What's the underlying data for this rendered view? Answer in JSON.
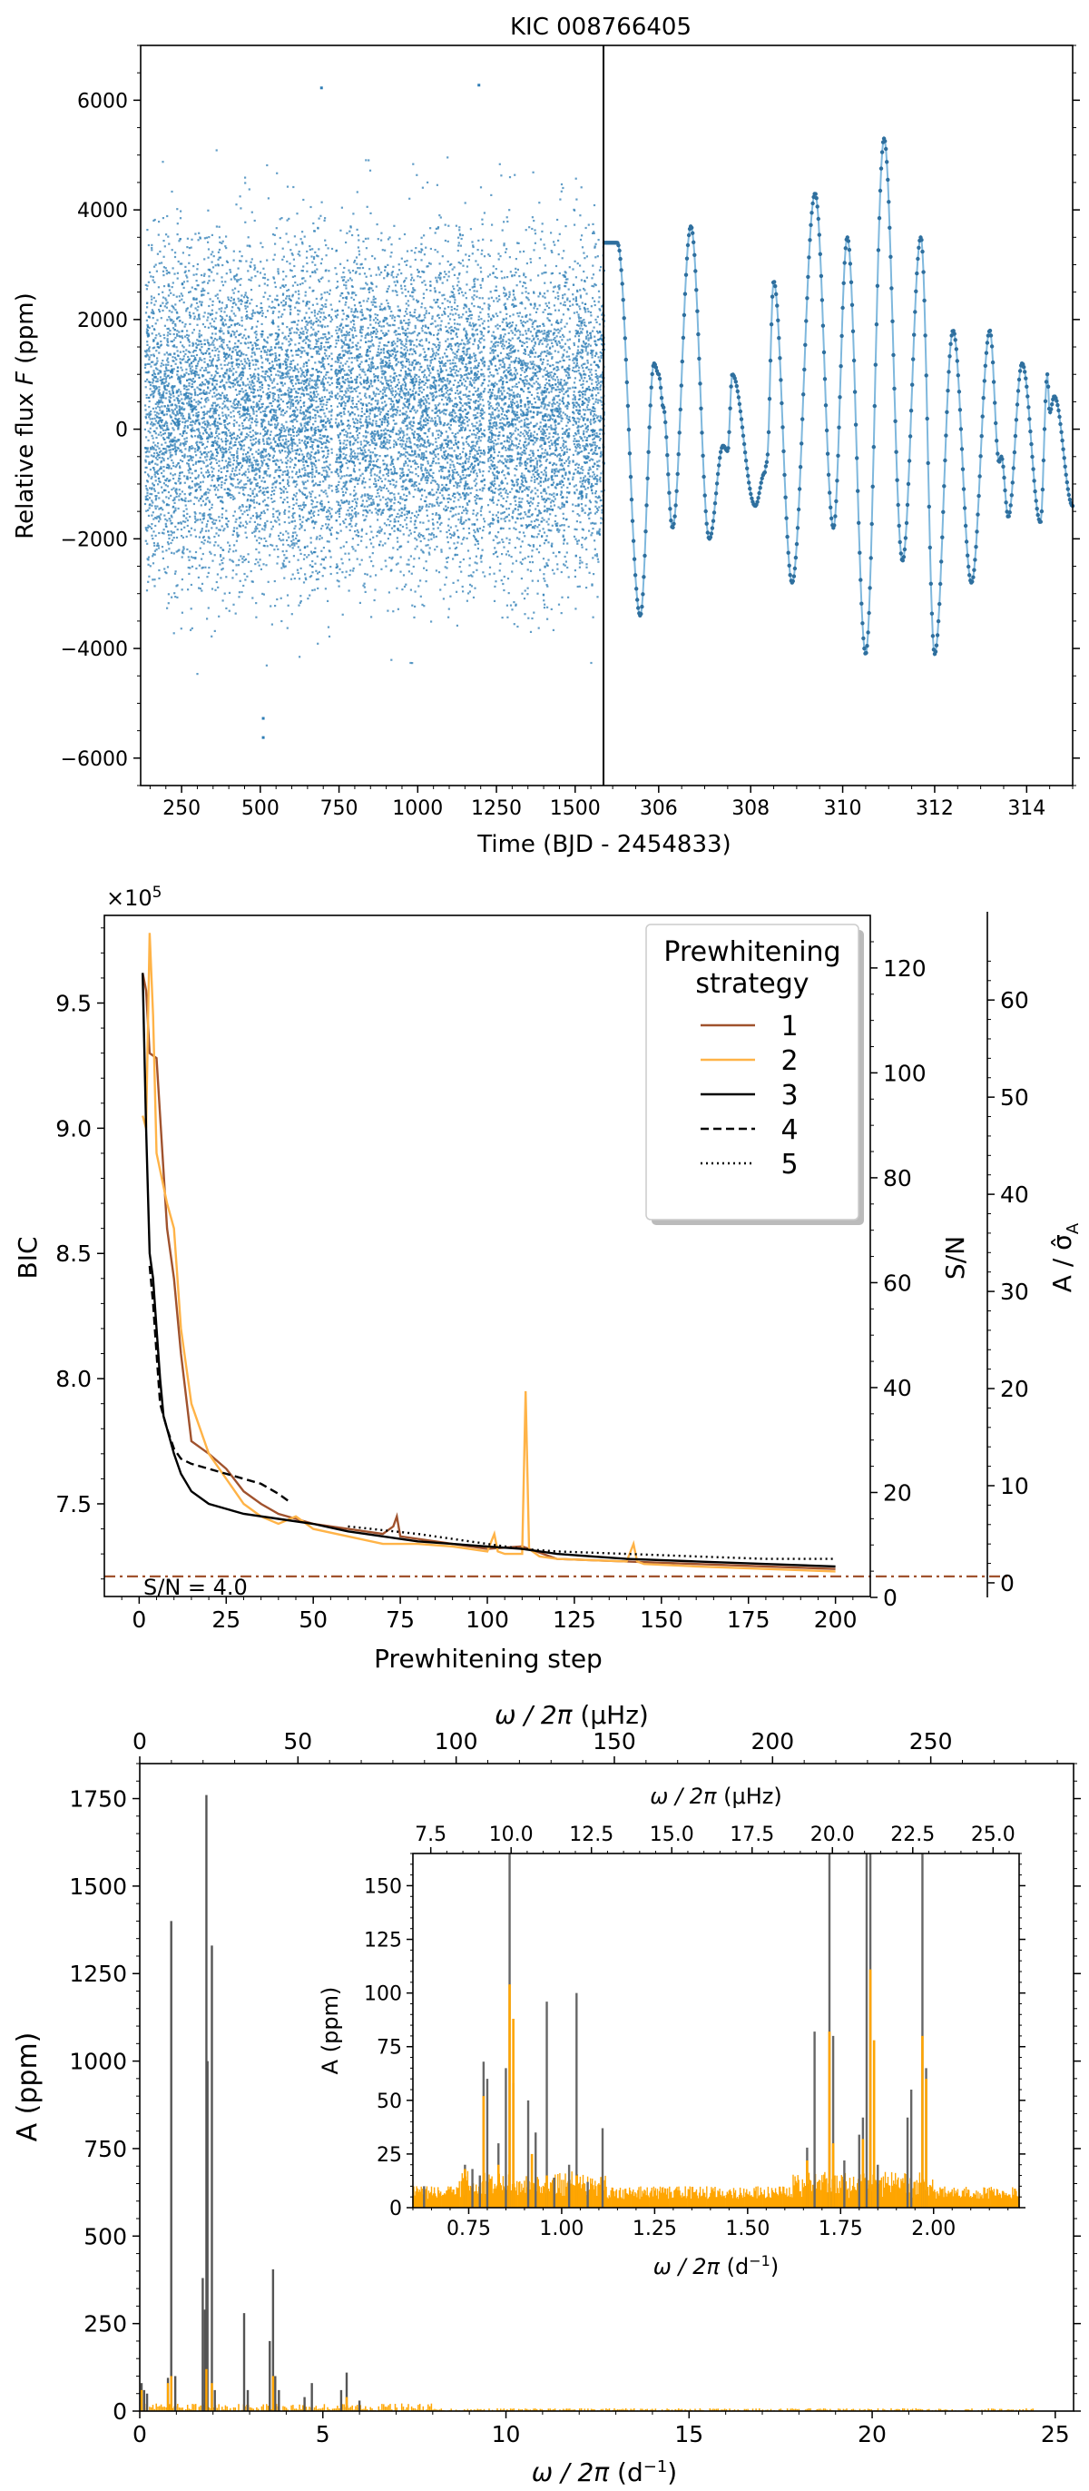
{
  "chart_data": [
    {
      "id": "lightcurve",
      "type": "scatter",
      "title": "KIC 008766405",
      "ylabel": "Relative flux",
      "ylabel_symbol": "F",
      "ylabel_unit": "(ppm)",
      "xlabel": "Time (BJD - 2454833)",
      "left_panel": {
        "xlim": [
          120,
          1590
        ],
        "ylim": [
          -6500,
          7000
        ],
        "xticks": [
          "250",
          "500",
          "750",
          "1000",
          "1250",
          "1500"
        ],
        "yticks": [
          "6000",
          "4000",
          "2000",
          "0",
          "−2000",
          "−4000",
          "−6000"
        ],
        "bands": [
          {
            "x": [
              131,
              1590
            ],
            "y": [
              -3800,
              4400
            ]
          },
          {
            "x": [
              131,
              1590
            ],
            "y": [
              -4700,
              5400
            ]
          },
          {
            "x": [
              160,
              1560
            ],
            "y": [
              -4900,
              6100
            ]
          }
        ],
        "outliers": [
          {
            "x": 505,
            "y": -5600
          },
          {
            "x": 505,
            "y": -5250
          },
          {
            "x": 1190,
            "y": 6300
          },
          {
            "x": 690,
            "y": 6250
          }
        ]
      },
      "right_panel": {
        "xlim": [
          304.8,
          315
        ],
        "xticks": [
          "306",
          "308",
          "310",
          "312",
          "314"
        ],
        "peaks": [
          {
            "x": 305.1,
            "y": 3400
          },
          {
            "x": 305.6,
            "y": -3400
          },
          {
            "x": 305.9,
            "y": 1200
          },
          {
            "x": 306.3,
            "y": -1800
          },
          {
            "x": 306.7,
            "y": 3700
          },
          {
            "x": 307.1,
            "y": -2000
          },
          {
            "x": 307.6,
            "y": 1000
          },
          {
            "x": 308.1,
            "y": -1400
          },
          {
            "x": 308.5,
            "y": 2700
          },
          {
            "x": 308.9,
            "y": -2800
          },
          {
            "x": 309.4,
            "y": 4300
          },
          {
            "x": 309.8,
            "y": -1800
          },
          {
            "x": 310.1,
            "y": 3500
          },
          {
            "x": 310.5,
            "y": -4100
          },
          {
            "x": 310.9,
            "y": 5300
          },
          {
            "x": 311.3,
            "y": -2400
          },
          {
            "x": 311.7,
            "y": 3500
          },
          {
            "x": 312.0,
            "y": -4100
          },
          {
            "x": 312.4,
            "y": 1800
          },
          {
            "x": 312.8,
            "y": -2800
          },
          {
            "x": 313.2,
            "y": 1800
          },
          {
            "x": 313.6,
            "y": -1600
          },
          {
            "x": 313.9,
            "y": 1200
          },
          {
            "x": 314.3,
            "y": -1700
          },
          {
            "x": 314.6,
            "y": 600
          },
          {
            "x": 315.0,
            "y": -1400
          }
        ],
        "fine_structure": [
          {
            "x": 306.0,
            "y": 1000
          },
          {
            "x": 306.1,
            "y": 400
          },
          {
            "x": 307.4,
            "y": -300
          },
          {
            "x": 307.5,
            "y": -400
          },
          {
            "x": 308.3,
            "y": -800
          },
          {
            "x": 308.35,
            "y": -600
          },
          {
            "x": 313.4,
            "y": -600
          },
          {
            "x": 313.45,
            "y": -500
          },
          {
            "x": 314.45,
            "y": 1000
          },
          {
            "x": 314.5,
            "y": 300
          }
        ]
      }
    },
    {
      "id": "bic",
      "type": "line",
      "xlabel": "Prewhitening step",
      "ylabel": "BIC",
      "offset_text": "×10",
      "offset_exponent": "5",
      "xlim": [
        -10,
        210
      ],
      "ylim": [
        7.13,
        9.85
      ],
      "xticks": [
        "0",
        "25",
        "50",
        "75",
        "100",
        "125",
        "150",
        "175",
        "200"
      ],
      "yticks": [
        "9.5",
        "9.0",
        "8.5",
        "8.0",
        "7.5"
      ],
      "sn_axis": {
        "label": "S/N",
        "color": "#8B4A2A",
        "ylim": [
          0,
          125
        ],
        "ticks": [
          "120",
          "100",
          "80",
          "60",
          "40",
          "20",
          "0"
        ]
      },
      "amp_axis": {
        "label": "A / σ̂",
        "label_sub": "A",
        "color": "#FFB347",
        "ylim": [
          -1.5,
          66
        ],
        "ticks": [
          "60",
          "50",
          "40",
          "30",
          "20",
          "10",
          "0"
        ]
      },
      "threshold": {
        "label": "S/N = 4.0",
        "value": 4.0,
        "color": "#A0522D"
      },
      "legend": {
        "title": [
          "Prewhitening",
          "strategy"
        ],
        "items": [
          {
            "label": "1",
            "color": "#A0522D",
            "dash": "solid"
          },
          {
            "label": "2",
            "color": "#FFB347",
            "dash": "solid"
          },
          {
            "label": "3",
            "color": "#000000",
            "dash": "solid"
          },
          {
            "label": "4",
            "color": "#000000",
            "dash": "dashed"
          },
          {
            "label": "5",
            "color": "#000000",
            "dash": "dotted"
          }
        ]
      },
      "series": [
        {
          "name": "1",
          "color": "#A0522D",
          "dash": "solid",
          "x": [
            1,
            2,
            3,
            5,
            8,
            10,
            12,
            15,
            20,
            25,
            30,
            35,
            40,
            50,
            60,
            70,
            73,
            74,
            75,
            80,
            90,
            100,
            110,
            120,
            140,
            160,
            180,
            200
          ],
          "y": [
            9.62,
            9.55,
            9.3,
            9.28,
            8.6,
            8.4,
            8.1,
            7.75,
            7.7,
            7.64,
            7.55,
            7.5,
            7.46,
            7.42,
            7.4,
            7.38,
            7.41,
            7.45,
            7.37,
            7.36,
            7.34,
            7.32,
            7.33,
            7.28,
            7.27,
            7.26,
            7.25,
            7.24
          ]
        },
        {
          "name": "2",
          "color": "#FFB347",
          "dash": "solid",
          "x": [
            1,
            2,
            3,
            4,
            5,
            8,
            10,
            12,
            15,
            20,
            25,
            30,
            35,
            40,
            45,
            50,
            60,
            70,
            80,
            90,
            100,
            102,
            103,
            105,
            108,
            110,
            111,
            112,
            115,
            120,
            140,
            142,
            143,
            145,
            160,
            180,
            200
          ],
          "y": [
            9.05,
            9.0,
            9.78,
            9.45,
            8.9,
            8.7,
            8.6,
            8.2,
            7.9,
            7.7,
            7.6,
            7.5,
            7.45,
            7.42,
            7.45,
            7.4,
            7.37,
            7.34,
            7.34,
            7.33,
            7.31,
            7.38,
            7.31,
            7.3,
            7.3,
            7.3,
            7.95,
            7.32,
            7.29,
            7.28,
            7.27,
            7.34,
            7.27,
            7.26,
            7.25,
            7.24,
            7.23
          ]
        },
        {
          "name": "3",
          "color": "#000000",
          "dash": "solid",
          "x": [
            1,
            2,
            3,
            4,
            5,
            6,
            7,
            8,
            10,
            12,
            15,
            20,
            25,
            30,
            40,
            50,
            60,
            70,
            80,
            100,
            110,
            120,
            140,
            160,
            180,
            200
          ],
          "y": [
            9.62,
            9.0,
            8.5,
            8.4,
            8.2,
            8.0,
            7.85,
            7.8,
            7.7,
            7.62,
            7.55,
            7.5,
            7.48,
            7.46,
            7.44,
            7.42,
            7.39,
            7.37,
            7.35,
            7.33,
            7.32,
            7.3,
            7.28,
            7.27,
            7.26,
            7.25
          ]
        },
        {
          "name": "4",
          "color": "#000000",
          "dash": "dashed",
          "x": [
            3,
            4,
            5,
            6,
            8,
            10,
            12,
            15,
            20,
            25,
            30,
            35,
            40,
            43
          ],
          "y": [
            8.45,
            8.3,
            8.1,
            7.9,
            7.8,
            7.72,
            7.68,
            7.66,
            7.64,
            7.62,
            7.6,
            7.58,
            7.54,
            7.51
          ]
        },
        {
          "name": "5",
          "color": "#000000",
          "dash": "dotted",
          "x": [
            60,
            80,
            100,
            110,
            120,
            140,
            160,
            180,
            200
          ],
          "y": [
            7.41,
            7.38,
            7.34,
            7.32,
            7.31,
            7.3,
            7.29,
            7.28,
            7.28
          ]
        }
      ]
    },
    {
      "id": "spectrum",
      "type": "bar",
      "xlabel_omega": "ω / 2π",
      "xlabel_unit_bottom": "(d",
      "xlabel_exp": "−1",
      "xlabel_close": ")",
      "xlabel_unit_top": "(μHz)",
      "ylabel": "A (ppm)",
      "xlim": [
        0,
        25.5
      ],
      "ylim": [
        0,
        1850
      ],
      "xticks": [
        "0",
        "5",
        "10",
        "15",
        "20",
        "25"
      ],
      "yticks": [
        "0",
        "250",
        "500",
        "750",
        "1000",
        "1250",
        "1500",
        "1750"
      ],
      "top_xticks": [
        "0",
        "50",
        "100",
        "150",
        "200",
        "250"
      ],
      "colors": {
        "original": "#555555",
        "residual": "#FFA500"
      },
      "peaks": [
        {
          "x": 0.05,
          "y": 80
        },
        {
          "x": 0.12,
          "y": 60
        },
        {
          "x": 0.2,
          "y": 50
        },
        {
          "x": 0.77,
          "y": 95
        },
        {
          "x": 0.86,
          "y": 1400
        },
        {
          "x": 0.97,
          "y": 100
        },
        {
          "x": 1.72,
          "y": 380
        },
        {
          "x": 1.78,
          "y": 290
        },
        {
          "x": 1.82,
          "y": 1760
        },
        {
          "x": 1.85,
          "y": 1000
        },
        {
          "x": 1.97,
          "y": 1330
        },
        {
          "x": 2.05,
          "y": 60
        },
        {
          "x": 2.85,
          "y": 280
        },
        {
          "x": 2.95,
          "y": 60
        },
        {
          "x": 3.55,
          "y": 200
        },
        {
          "x": 3.64,
          "y": 405
        },
        {
          "x": 3.7,
          "y": 100
        },
        {
          "x": 3.8,
          "y": 60
        },
        {
          "x": 4.5,
          "y": 40
        },
        {
          "x": 4.7,
          "y": 80
        },
        {
          "x": 5.5,
          "y": 60
        },
        {
          "x": 5.65,
          "y": 110
        },
        {
          "x": 6.0,
          "y": 30
        }
      ],
      "residual_peaks": [
        {
          "x": 0.05,
          "y": 60
        },
        {
          "x": 0.77,
          "y": 80
        },
        {
          "x": 0.86,
          "y": 100
        },
        {
          "x": 1.82,
          "y": 120
        },
        {
          "x": 1.97,
          "y": 80
        },
        {
          "x": 3.64,
          "y": 100
        },
        {
          "x": 5.65,
          "y": 40
        }
      ],
      "inset": {
        "xlim": [
          0.6,
          2.23
        ],
        "ylim": [
          0,
          165
        ],
        "xticks": [
          "0.75",
          "1.00",
          "1.25",
          "1.50",
          "1.75",
          "2.00"
        ],
        "yticks": [
          "0",
          "25",
          "50",
          "75",
          "100",
          "125",
          "150"
        ],
        "top_xticks": [
          "7.5",
          "10.0",
          "12.5",
          "15.0",
          "17.5",
          "20.0",
          "22.5",
          "25.0"
        ],
        "original_peaks": [
          {
            "x": 0.63,
            "y": 10
          },
          {
            "x": 0.74,
            "y": 20
          },
          {
            "x": 0.76,
            "y": 18
          },
          {
            "x": 0.78,
            "y": 15
          },
          {
            "x": 0.79,
            "y": 68
          },
          {
            "x": 0.8,
            "y": 60
          },
          {
            "x": 0.83,
            "y": 30
          },
          {
            "x": 0.85,
            "y": 65
          },
          {
            "x": 0.86,
            "y": 165
          },
          {
            "x": 0.87,
            "y": 58
          },
          {
            "x": 0.91,
            "y": 50
          },
          {
            "x": 0.93,
            "y": 35
          },
          {
            "x": 0.96,
            "y": 96
          },
          {
            "x": 0.98,
            "y": 14
          },
          {
            "x": 1.02,
            "y": 20
          },
          {
            "x": 1.04,
            "y": 100
          },
          {
            "x": 1.07,
            "y": 12
          },
          {
            "x": 1.11,
            "y": 37
          },
          {
            "x": 1.66,
            "y": 28
          },
          {
            "x": 1.68,
            "y": 82
          },
          {
            "x": 1.72,
            "y": 165
          },
          {
            "x": 1.73,
            "y": 80
          },
          {
            "x": 1.76,
            "y": 22
          },
          {
            "x": 1.8,
            "y": 34
          },
          {
            "x": 1.81,
            "y": 42
          },
          {
            "x": 1.82,
            "y": 165
          },
          {
            "x": 1.83,
            "y": 165
          },
          {
            "x": 1.85,
            "y": 20
          },
          {
            "x": 1.93,
            "y": 42
          },
          {
            "x": 1.94,
            "y": 55
          },
          {
            "x": 1.97,
            "y": 165
          },
          {
            "x": 1.98,
            "y": 65
          }
        ],
        "residual_peaks": [
          {
            "x": 0.74,
            "y": 18
          },
          {
            "x": 0.79,
            "y": 52
          },
          {
            "x": 0.83,
            "y": 20
          },
          {
            "x": 0.86,
            "y": 104
          },
          {
            "x": 0.87,
            "y": 88
          },
          {
            "x": 0.92,
            "y": 25
          },
          {
            "x": 0.96,
            "y": 15
          },
          {
            "x": 1.04,
            "y": 15
          },
          {
            "x": 1.66,
            "y": 22
          },
          {
            "x": 1.72,
            "y": 82
          },
          {
            "x": 1.73,
            "y": 30
          },
          {
            "x": 1.81,
            "y": 32
          },
          {
            "x": 1.83,
            "y": 111
          },
          {
            "x": 1.84,
            "y": 78
          },
          {
            "x": 1.97,
            "y": 80
          },
          {
            "x": 1.98,
            "y": 60
          }
        ]
      }
    }
  ]
}
